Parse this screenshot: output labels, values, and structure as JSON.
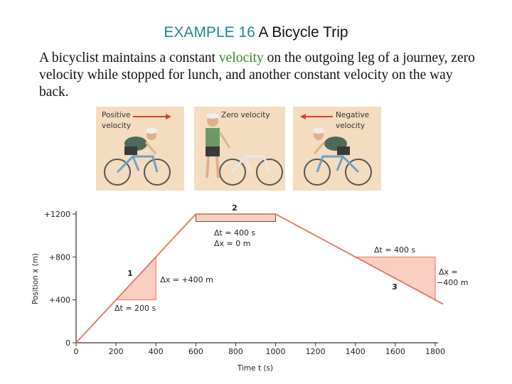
{
  "title": {
    "number": "EXAMPLE 16",
    "name": "A Bicycle Trip"
  },
  "intro": {
    "before": "A bicyclist maintains a constant ",
    "highlight": "velocity",
    "after": " on the outgoing leg of a journey, zero velocity while stopped for lunch, and another constant velocity on the way back."
  },
  "panels": [
    {
      "line1": "Positive",
      "line2": "velocity"
    },
    {
      "line1": "Zero velocity",
      "line2": ""
    },
    {
      "line1": "Negative",
      "line2": "velocity"
    }
  ],
  "colors": {
    "line": "#e8735a",
    "fill": "#f8cfc1",
    "axis": "#333333",
    "panel": "#f4dcc0",
    "arrow": "#d9402a",
    "title_highlight": "#1a8a8a",
    "word_highlight": "#2e8b2e"
  },
  "chart_data": {
    "type": "line",
    "xlabel": "Time t (s)",
    "ylabel": "Position x (m)",
    "xlim": [
      0,
      1800
    ],
    "ylim": [
      0,
      1200
    ],
    "xticks": [
      0,
      200,
      400,
      600,
      800,
      1000,
      1200,
      1400,
      1600,
      1800
    ],
    "yticks": [
      0,
      400,
      800,
      1200
    ],
    "ytick_labels": [
      "0",
      "+400",
      "+800",
      "+1200"
    ],
    "series": [
      {
        "x": [
          0,
          600,
          1000,
          1800
        ],
        "y": [
          0,
          1200,
          1200,
          400
        ]
      }
    ],
    "segments": [
      {
        "label": "1",
        "dt": "Δt = 200 s",
        "dx": "Δx = +400 m"
      },
      {
        "label": "2",
        "dt": "Δt = 400 s",
        "dx": "Δx = 0 m"
      },
      {
        "label": "3",
        "dt": "Δt = 400 s",
        "dx": "Δx =",
        "dx2": "−400 m"
      }
    ]
  }
}
